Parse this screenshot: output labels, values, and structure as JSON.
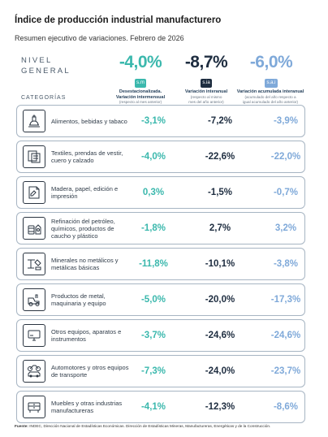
{
  "title": "Índice de producción industrial manufacturero",
  "subtitle": "Resumen ejecutivo de variaciones. Febrero de 2026",
  "nivel_general": {
    "label_line1": "NIVEL",
    "label_line2": "GENERAL",
    "values": [
      {
        "value": "-4,0%",
        "badge": "s.m",
        "color": "#3bb8ad"
      },
      {
        "value": "-8,7%",
        "badge": "s.ia",
        "color": "#1e2d40"
      },
      {
        "value": "-6,0%",
        "badge": "s.a.i",
        "color": "#7fa9d9"
      }
    ]
  },
  "column_headers": [
    {
      "main1": "Desestacionalizada.",
      "main2": "Variación intermensual",
      "sub1": "(respecto al mes anterior)",
      "sub2": ""
    },
    {
      "main1": "Variación interanual",
      "main2": "",
      "sub1": "(respecto al mismo",
      "sub2": "mes del año anterior)"
    },
    {
      "main1": "Variación acumulada interanual",
      "main2": "",
      "sub1": "(acumulado del año respecto a",
      "sub2": "igual acumulado del año anterior)"
    }
  ],
  "categories_label": "CATEGORÍAS",
  "rows": [
    {
      "icon": "food-icon",
      "label": "Alimentos, bebidas y tabaco",
      "v1": "-3,1%",
      "v2": "-7,2%",
      "v3": "-3,9%"
    },
    {
      "icon": "textile-icon",
      "label": "Textiles, prendas de vestir, cuero y calzado",
      "v1": "-4,0%",
      "v2": "-22,6%",
      "v3": "-22,0%"
    },
    {
      "icon": "paper-icon",
      "label": "Madera, papel, edición e impresión",
      "v1": "0,3%",
      "v2": "-1,5%",
      "v3": "-0,7%"
    },
    {
      "icon": "refinery-icon",
      "label": "Refinación del petróleo, químicos, productos de caucho y plástico",
      "v1": "-1,8%",
      "v2": "2,7%",
      "v3": "3,2%"
    },
    {
      "icon": "minerals-icon",
      "label": "Minerales no metálicos y metálicas básicas",
      "v1": "-11,8%",
      "v2": "-10,1%",
      "v3": "-3,8%"
    },
    {
      "icon": "tractor-icon",
      "label": "Productos de metal, maquinaria y equipo",
      "v1": "-5,0%",
      "v2": "-20,0%",
      "v3": "-17,3%"
    },
    {
      "icon": "monitor-icon",
      "label": "Otros equipos, aparatos e instrumentos",
      "v1": "-3,7%",
      "v2": "-24,6%",
      "v3": "-24,6%"
    },
    {
      "icon": "vehicles-icon",
      "label": "Automotores y otros equipos de transporte",
      "v1": "-7,3%",
      "v2": "-24,0%",
      "v3": "-23,7%"
    },
    {
      "icon": "furniture-icon",
      "label": "Muebles y otras industrias manufactureras",
      "v1": "-4,1%",
      "v2": "-12,3%",
      "v3": "-8,6%"
    }
  ],
  "footer": {
    "label": "Fuente:",
    "text": "INDEC, Dirección Nacional de Estadísticas Económicas. Dirección de Estadísticas Mineras, Manufactureras, Energéticas y de la Construcción."
  }
}
